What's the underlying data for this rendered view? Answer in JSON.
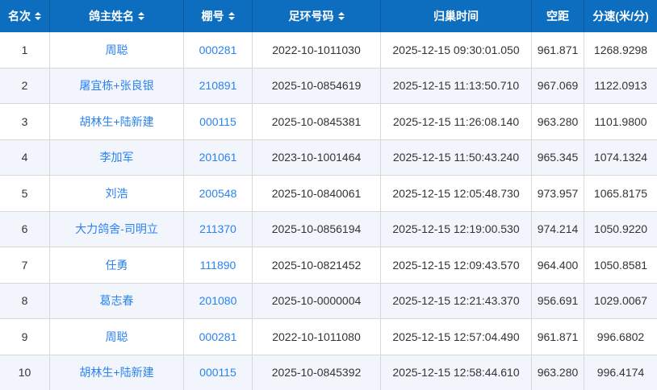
{
  "table": {
    "colors": {
      "header_bg": "#0d6ebf",
      "header_divider": "#0b5c9d",
      "link": "#2b82f0",
      "text": "#333333",
      "alt_row_bg": "#f2f6fc",
      "grid_line": "#d8d8d8"
    },
    "columns": [
      {
        "key": "rank",
        "label": "名次",
        "sortable": true
      },
      {
        "key": "owner",
        "label": "鸽主姓名",
        "sortable": true
      },
      {
        "key": "loft",
        "label": "棚号",
        "sortable": true
      },
      {
        "key": "ring",
        "label": "足环号码",
        "sortable": true
      },
      {
        "key": "time",
        "label": "归巢时间",
        "sortable": false
      },
      {
        "key": "distance",
        "label": "空距",
        "sortable": false
      },
      {
        "key": "speed",
        "label": "分速(米/分)",
        "sortable": false
      }
    ],
    "rows": [
      [
        "1",
        "周聪",
        "000281",
        "2022-10-1011030",
        "2025-12-15 09:30:01.050",
        "961.871",
        "1268.9298"
      ],
      [
        "2",
        "屠宜栋+张良银",
        "210891",
        "2025-10-0854619",
        "2025-12-15 11:13:50.710",
        "967.069",
        "1122.0913"
      ],
      [
        "3",
        "胡林生+陆新建",
        "000115",
        "2025-10-0845381",
        "2025-12-15 11:26:08.140",
        "963.280",
        "1101.9800"
      ],
      [
        "4",
        "李加军",
        "201061",
        "2023-10-1001464",
        "2025-12-15 11:50:43.240",
        "965.345",
        "1074.1324"
      ],
      [
        "5",
        "刘浩",
        "200548",
        "2025-10-0840061",
        "2025-12-15 12:05:48.730",
        "973.957",
        "1065.8175"
      ],
      [
        "6",
        "大力鸽舍-司明立",
        "211370",
        "2025-10-0856194",
        "2025-12-15 12:19:00.530",
        "974.214",
        "1050.9220"
      ],
      [
        "7",
        "任勇",
        "111890",
        "2025-10-0821452",
        "2025-12-15 12:09:43.570",
        "964.400",
        "1050.8581"
      ],
      [
        "8",
        "葛志春",
        "201080",
        "2025-10-0000004",
        "2025-12-15 12:21:43.370",
        "956.691",
        "1029.0067"
      ],
      [
        "9",
        "周聪",
        "000281",
        "2022-10-1011080",
        "2025-12-15 12:57:04.490",
        "961.871",
        "996.6802"
      ],
      [
        "10",
        "胡林生+陆新建",
        "000115",
        "2025-10-0845392",
        "2025-12-15 12:58:44.610",
        "963.280",
        "996.4174"
      ]
    ]
  }
}
